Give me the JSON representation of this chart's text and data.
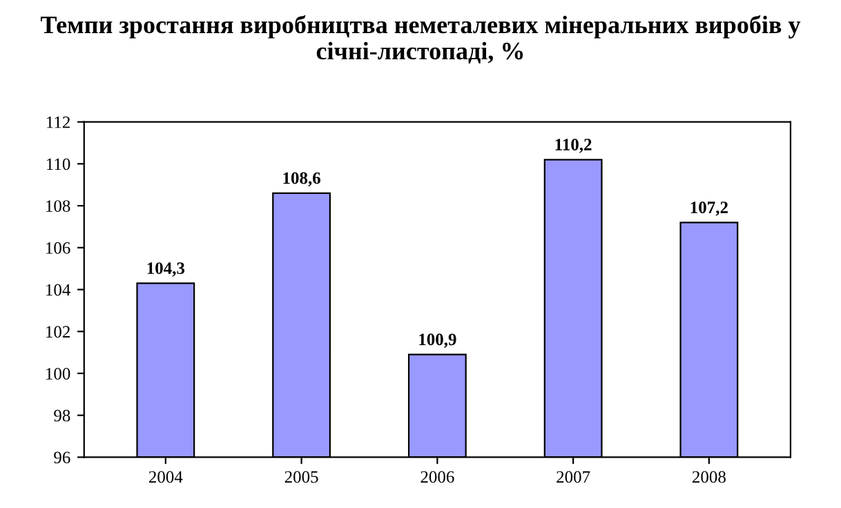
{
  "chart_data": {
    "type": "bar",
    "title": "Темпи зростання виробництва неметалевих мінеральних виробів у січні-листопаді, %",
    "categories": [
      "2004",
      "2005",
      "2006",
      "2007",
      "2008"
    ],
    "values": [
      104.3,
      108.6,
      100.9,
      110.2,
      107.2
    ],
    "value_labels": [
      "104,3",
      "108,6",
      "100,9",
      "110,2",
      "107,2"
    ],
    "color": "#9999ff",
    "ylim": [
      96,
      112
    ],
    "yticks": [
      96,
      98,
      100,
      102,
      104,
      106,
      108,
      110,
      112
    ],
    "grid": false
  }
}
